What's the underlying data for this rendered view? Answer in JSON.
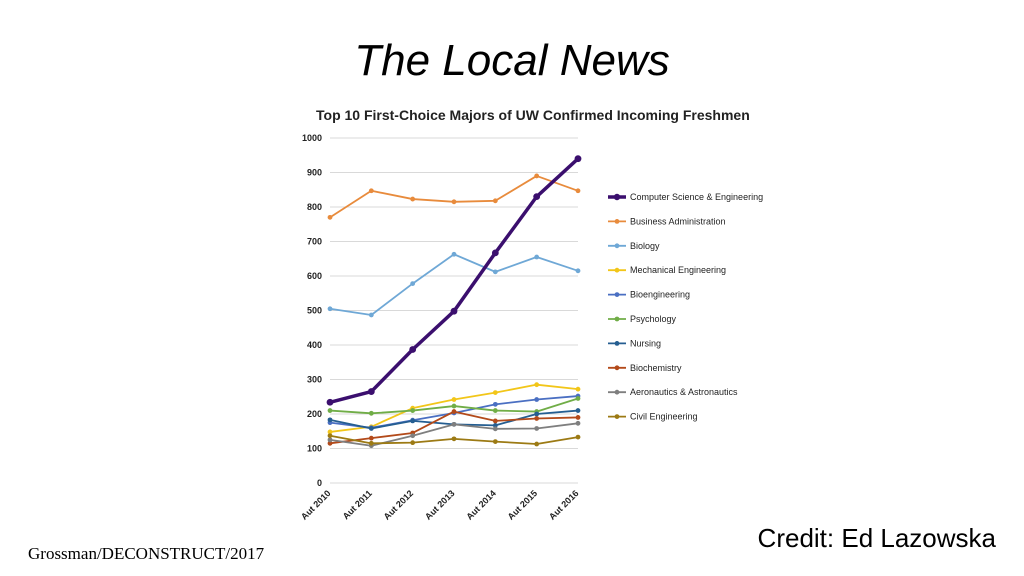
{
  "slide": {
    "title": "The Local News",
    "credit": "Credit: Ed Lazowska",
    "footer": "Grossman/DECONSTRUCT/2017"
  },
  "chart_data": {
    "type": "line",
    "title": "Top 10 First-Choice Majors of UW Confirmed Incoming Freshmen",
    "xlabel": "",
    "ylabel": "",
    "categories": [
      "Aut 2010",
      "Aut 2011",
      "Aut 2012",
      "Aut 2013",
      "Aut 2014",
      "Aut 2015",
      "Aut 2016"
    ],
    "ylim": [
      0,
      1000
    ],
    "yticks": [
      0,
      100,
      200,
      300,
      400,
      500,
      600,
      700,
      800,
      900,
      1000
    ],
    "grid": true,
    "legend_position": "right",
    "series": [
      {
        "name": "Computer Science & Engineering",
        "color": "#3b0f6e",
        "bold": true,
        "values": [
          234,
          265,
          387,
          498,
          667,
          830,
          940
        ]
      },
      {
        "name": "Business Administration",
        "color": "#e88b3c",
        "values": [
          770,
          847,
          823,
          815,
          818,
          890,
          847
        ]
      },
      {
        "name": "Biology",
        "color": "#6fa8d6",
        "values": [
          505,
          487,
          578,
          663,
          612,
          655,
          615
        ]
      },
      {
        "name": "Mechanical Engineering",
        "color": "#f2c619",
        "values": [
          148,
          163,
          217,
          242,
          262,
          285,
          272
        ]
      },
      {
        "name": "Bioengineering",
        "color": "#4a6fc2",
        "values": [
          175,
          160,
          182,
          203,
          228,
          242,
          252
        ]
      },
      {
        "name": "Psychology",
        "color": "#70ad47",
        "values": [
          210,
          202,
          210,
          223,
          210,
          207,
          245
        ]
      },
      {
        "name": "Nursing",
        "color": "#255e91",
        "values": [
          183,
          158,
          180,
          170,
          167,
          200,
          210
        ]
      },
      {
        "name": "Biochemistry",
        "color": "#b34a1a",
        "values": [
          115,
          130,
          145,
          207,
          180,
          187,
          190
        ]
      },
      {
        "name": "Aeronautics & Astronautics",
        "color": "#7f7f7f",
        "values": [
          125,
          108,
          137,
          170,
          157,
          158,
          173
        ]
      },
      {
        "name": "Civil Engineering",
        "color": "#9c7a14",
        "values": [
          137,
          115,
          117,
          128,
          120,
          113,
          133
        ]
      }
    ]
  }
}
